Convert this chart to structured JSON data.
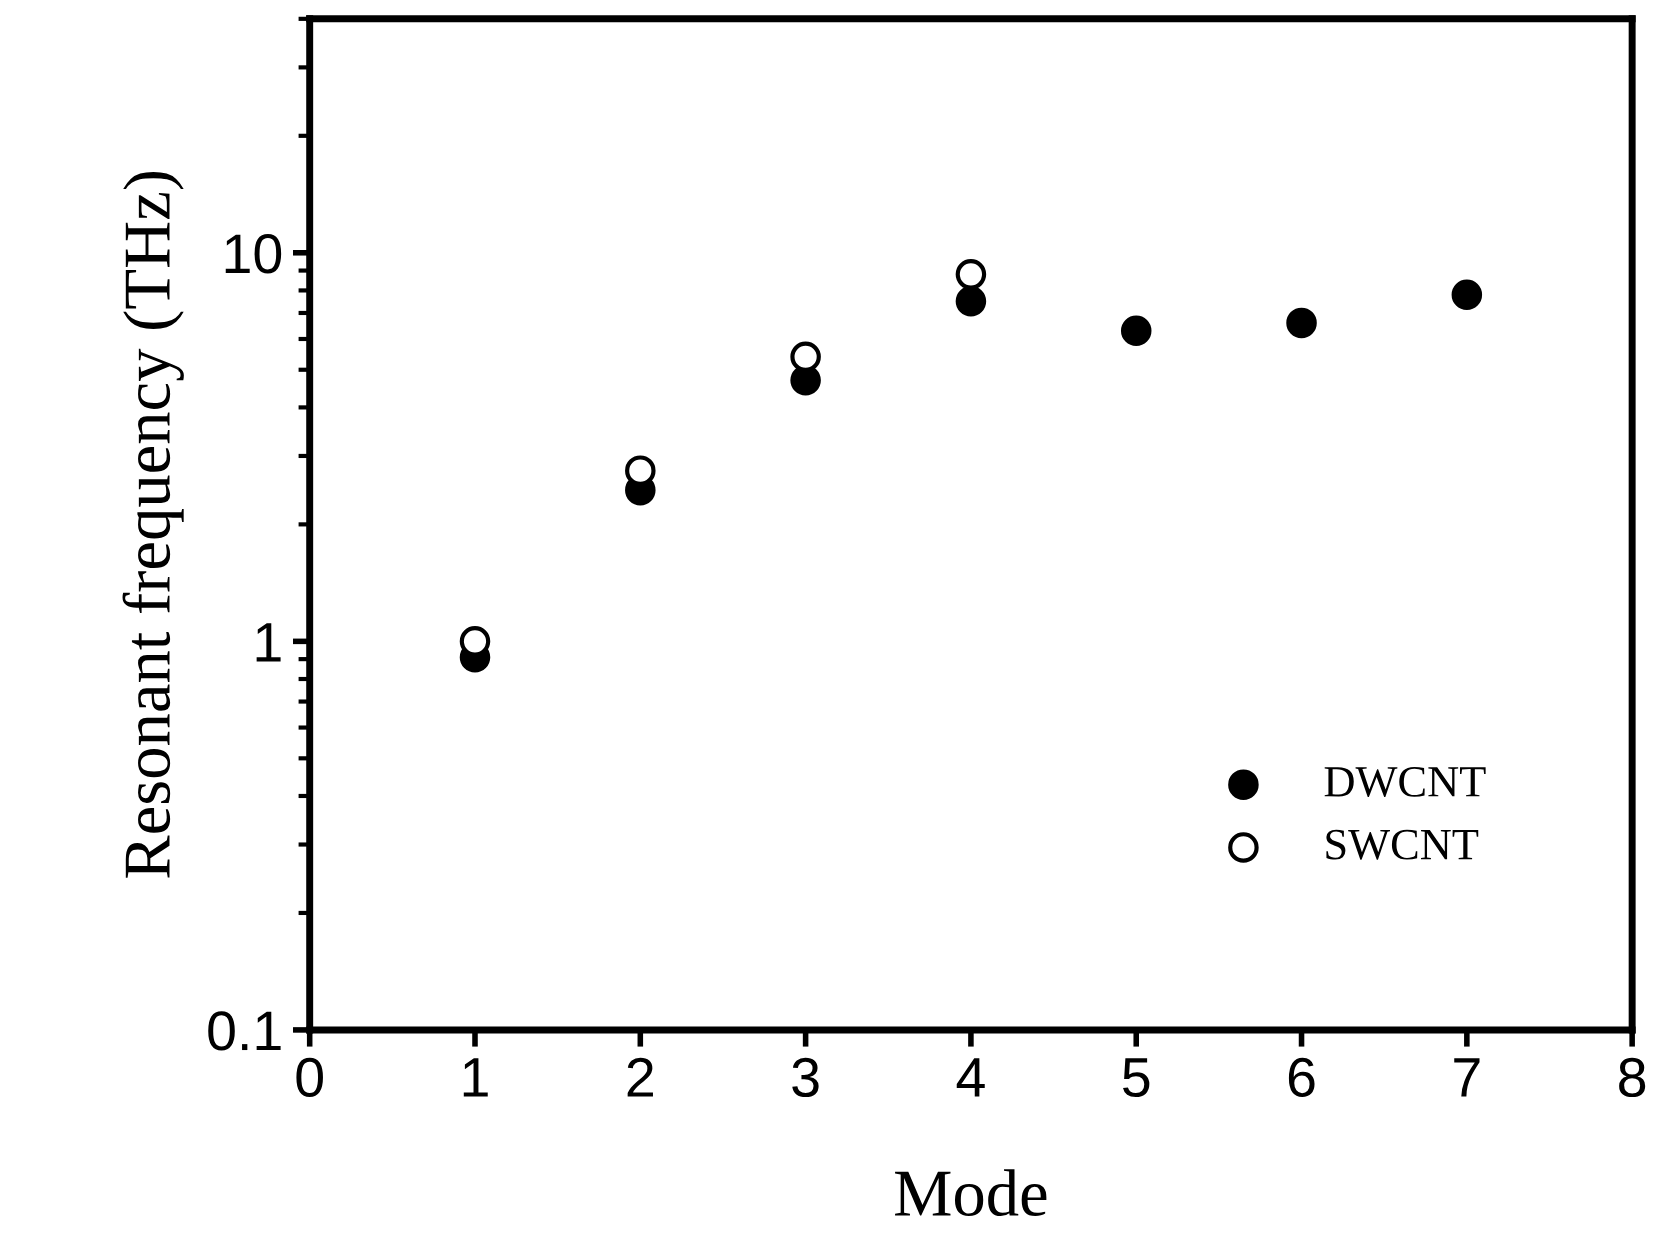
{
  "chart_data": {
    "type": "scatter",
    "xlabel": "Mode",
    "ylabel": "Resonant frequency (THz)",
    "log": "y",
    "xlim": [
      0,
      8
    ],
    "xticks": [
      0,
      1,
      2,
      3,
      4,
      5,
      6,
      7,
      8
    ],
    "ylim": [
      0.1,
      40
    ],
    "yticks": [
      0.1,
      1,
      10
    ],
    "legend": "bottom right",
    "marker": "circle",
    "grid": false,
    "series": [
      {
        "name": "DWCNT",
        "color": "#000000",
        "x": [
          1,
          2,
          3,
          4,
          5,
          6,
          7
        ],
        "values": [
          0.91,
          2.45,
          4.7,
          7.5,
          6.3,
          6.6,
          7.8
        ]
      },
      {
        "name": "SWCNT",
        "color": "#000000",
        "x": [
          1,
          2,
          3,
          4
        ],
        "values": [
          1.0,
          2.75,
          5.4,
          8.8
        ]
      }
    ]
  }
}
